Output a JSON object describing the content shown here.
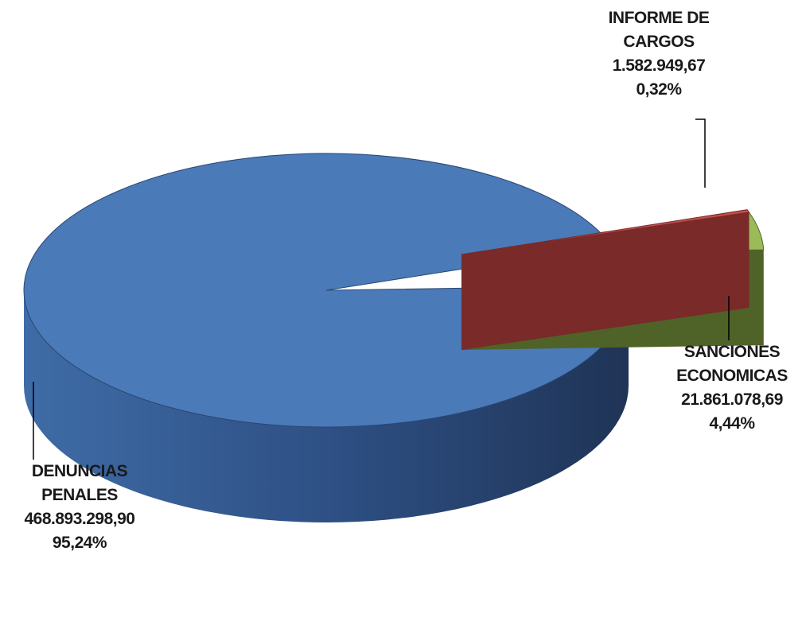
{
  "chart_data": {
    "type": "pie3d",
    "categories": [
      "DENUNCIAS\nPENALES",
      "SANCIONES\nECONOMICAS",
      "INFORME DE\nCARGOS"
    ],
    "values": [
      468893298.9,
      21861078.69,
      1582949.67
    ],
    "value_labels": [
      "468.893.298,90",
      "21.861.078,69",
      "1.582.949,67"
    ],
    "percent_labels": [
      "95,24%",
      "4,44%",
      "0,32%"
    ],
    "colors": [
      "#4a7ab8",
      "#9bbb59",
      "#c0504d"
    ],
    "side_colors": [
      "#2a4670",
      "#4f6228",
      "#7a2a28"
    ],
    "exploded": [
      false,
      true,
      true
    ]
  }
}
